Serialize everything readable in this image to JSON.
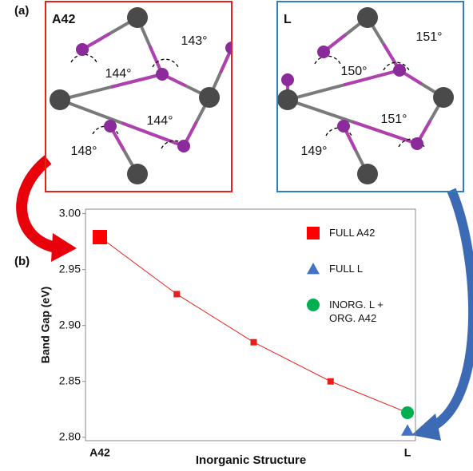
{
  "panel_a": {
    "label": "(a)",
    "structures": [
      {
        "name": "A42",
        "color": "#e8201c",
        "angles": [
          "144°",
          "143°",
          "148°",
          "144°"
        ]
      },
      {
        "name": "L",
        "color": "#2e7ec0",
        "angles": [
          "150°",
          "151°",
          "149°",
          "151°"
        ]
      }
    ]
  },
  "panel_b_label": "(b)",
  "chart_data": {
    "type": "line",
    "x_label": "Inorganic Structure",
    "y_label": "Band Gap (eV)",
    "categories": [
      "A42",
      null,
      null,
      null,
      "L"
    ],
    "line": {
      "color": "#e8201c",
      "values": [
        2.979,
        2.928,
        2.885,
        2.85,
        2.822
      ]
    },
    "series": [
      {
        "name": "FULL A42",
        "color": "#ff0000",
        "marker": "square",
        "values": [
          2.979,
          null,
          null,
          null,
          null
        ]
      },
      {
        "name": "FULL L",
        "color": "#4472c4",
        "marker": "triangle",
        "values": [
          null,
          null,
          null,
          null,
          2.806
        ]
      },
      {
        "name": "INORG. L + ORG. A42",
        "color": "#00b050",
        "marker": "circle",
        "values": [
          null,
          null,
          null,
          null,
          2.822
        ]
      }
    ],
    "ylim": [
      2.797,
      3.004
    ],
    "yticks": [
      {
        "value": 2.8,
        "label": "2.80"
      },
      2.85,
      {
        "value": 2.9,
        "label": "2.90"
      },
      2.95,
      {
        "value": 3.0,
        "label": "3.00"
      }
    ],
    "legend": "upper right"
  }
}
